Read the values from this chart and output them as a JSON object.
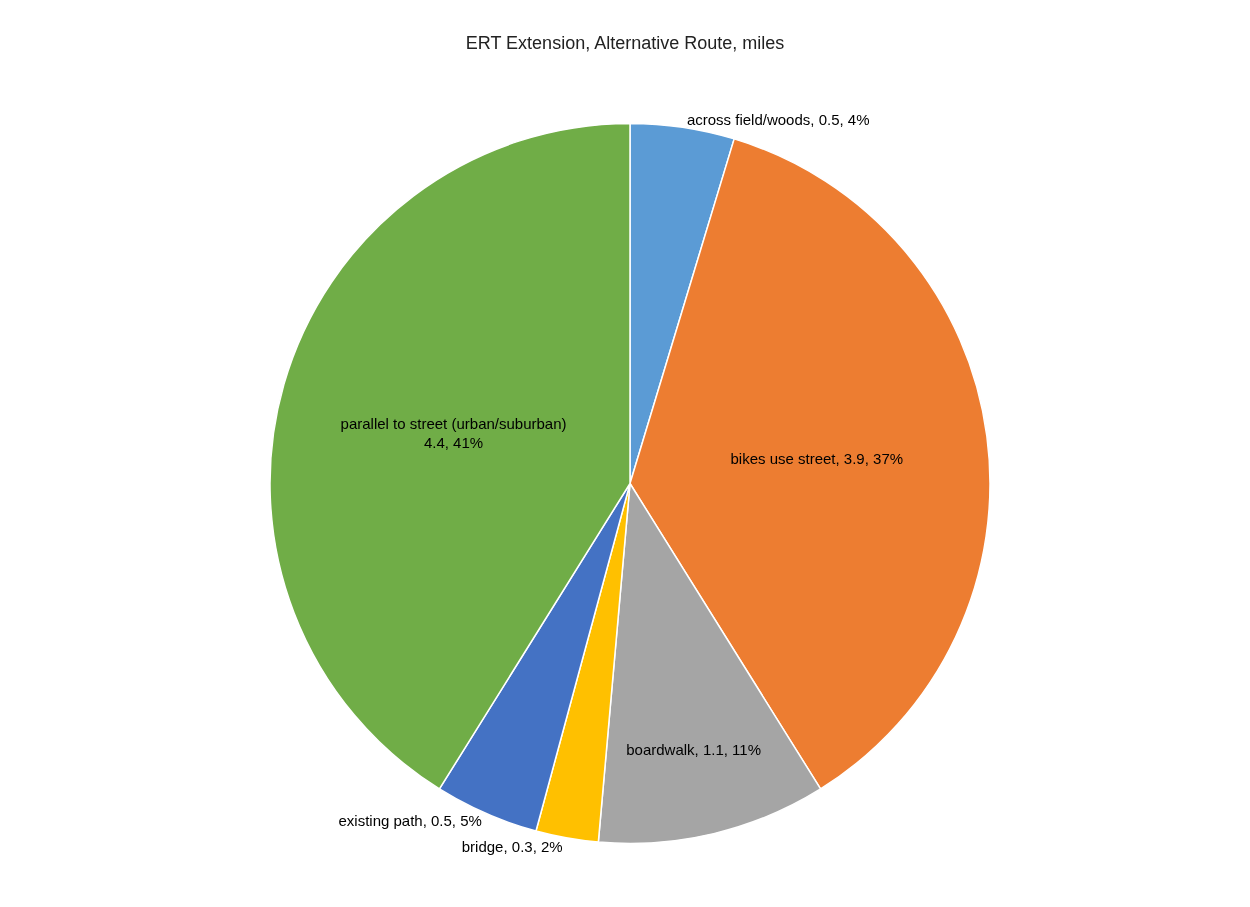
{
  "chart_data": {
    "type": "pie",
    "title": "ERT Extension, Alternative Route, miles",
    "categories": [
      "across field/woods",
      "bikes use street",
      "boardwalk",
      "bridge",
      "existing path",
      "parallel to street (urban/suburban)"
    ],
    "values": [
      0.5,
      3.9,
      1.1,
      0.3,
      0.5,
      4.4
    ],
    "value_labels": [
      "0.5, 4%",
      "3.9, 37%",
      "1.1, 11%",
      "0.3, 2%",
      "0.5, 5%",
      "4.4, 41%"
    ],
    "colors": [
      "#5b9bd5",
      "#ed7d31",
      "#a5a5a5",
      "#ffc000",
      "#4472c4",
      "#70ad47"
    ],
    "legend": false
  }
}
